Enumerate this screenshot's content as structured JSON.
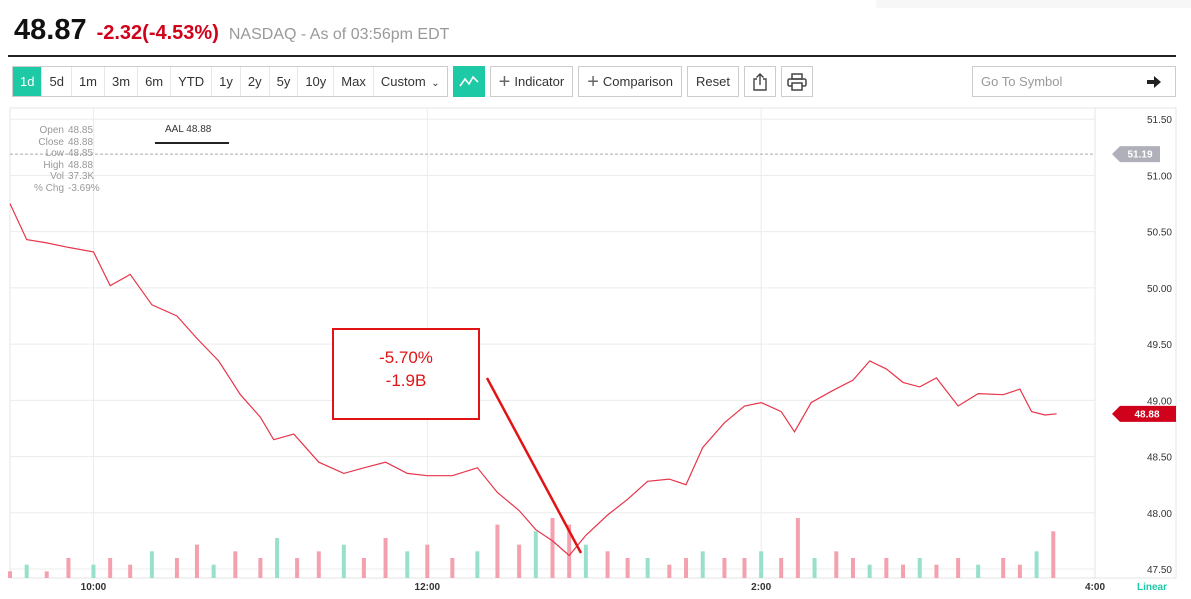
{
  "header": {
    "price": "48.87",
    "change": "-2.32",
    "change_pct": "(-4.53%)",
    "exchange_time": "NASDAQ - As of 03:56pm EDT"
  },
  "toolbar": {
    "ranges": [
      "1d",
      "5d",
      "1m",
      "3m",
      "6m",
      "YTD",
      "1y",
      "2y",
      "5y",
      "10y",
      "Max"
    ],
    "active_range": "1d",
    "custom_label": "Custom",
    "indicator_label": "Indicator",
    "comparison_label": "Comparison",
    "reset_label": "Reset"
  },
  "symbol_search": {
    "placeholder": "Go To Symbol"
  },
  "ohlc": {
    "open_label": "Open",
    "open": "48.85",
    "close_label": "Close",
    "close": "48.88",
    "low_label": "Low",
    "low": "48.85",
    "high_label": "High",
    "high": "48.88",
    "vol_label": "Vol",
    "vol": "37.3K",
    "chg_label": "% Chg",
    "chg": "-3.69%"
  },
  "legend": {
    "label": "AAL 48.88"
  },
  "annotation": {
    "line1": "-5.70%",
    "line2": "-1.9B"
  },
  "price_tags": {
    "previous_close": "51.19",
    "last": "48.88"
  },
  "scale_label": "Linear",
  "colors": {
    "accent": "#1ec9a5",
    "line": "#e8354a",
    "down": "#d0021b",
    "annotation": "#e01414",
    "vol_down": "#f5a0ae",
    "vol_up": "#98e0cc",
    "prev_close_tag": "#b0b0bb"
  },
  "chart_data": {
    "type": "line",
    "y_ticks": [
      "51.50",
      "51.00",
      "50.50",
      "50.00",
      "49.50",
      "49.00",
      "48.50",
      "48.00",
      "47.50"
    ],
    "x_ticks": [
      {
        "t": 10.0,
        "label": "10:00"
      },
      {
        "t": 12.0,
        "label": "12:00"
      },
      {
        "t": 14.0,
        "label": "2:00"
      },
      {
        "t": 16.0,
        "label": "4:00"
      }
    ],
    "ylim": [
      47.42,
      51.6
    ],
    "xlim": [
      9.5,
      16.0
    ],
    "previous_close": 51.19,
    "series": [
      {
        "points": [
          [
            9.5,
            50.75
          ],
          [
            9.6,
            50.43
          ],
          [
            9.72,
            50.4
          ],
          [
            9.85,
            50.36
          ],
          [
            10.0,
            50.32
          ],
          [
            10.1,
            50.02
          ],
          [
            10.22,
            50.12
          ],
          [
            10.35,
            49.85
          ],
          [
            10.5,
            49.75
          ],
          [
            10.62,
            49.55
          ],
          [
            10.75,
            49.35
          ],
          [
            10.88,
            49.05
          ],
          [
            11.0,
            48.85
          ],
          [
            11.08,
            48.65
          ],
          [
            11.2,
            48.7
          ],
          [
            11.35,
            48.45
          ],
          [
            11.5,
            48.35
          ],
          [
            11.62,
            48.4
          ],
          [
            11.75,
            48.45
          ],
          [
            11.88,
            48.35
          ],
          [
            12.0,
            48.33
          ],
          [
            12.15,
            48.33
          ],
          [
            12.3,
            48.4
          ],
          [
            12.42,
            48.18
          ],
          [
            12.55,
            48.02
          ],
          [
            12.65,
            47.85
          ],
          [
            12.75,
            47.75
          ],
          [
            12.85,
            47.62
          ],
          [
            12.95,
            47.8
          ],
          [
            13.08,
            47.98
          ],
          [
            13.2,
            48.12
          ],
          [
            13.32,
            48.28
          ],
          [
            13.45,
            48.3
          ],
          [
            13.55,
            48.25
          ],
          [
            13.65,
            48.58
          ],
          [
            13.78,
            48.8
          ],
          [
            13.9,
            48.95
          ],
          [
            14.0,
            48.98
          ],
          [
            14.12,
            48.9
          ],
          [
            14.2,
            48.72
          ],
          [
            14.3,
            48.98
          ],
          [
            14.42,
            49.08
          ],
          [
            14.55,
            49.18
          ],
          [
            14.65,
            49.35
          ],
          [
            14.75,
            49.28
          ],
          [
            14.85,
            49.16
          ],
          [
            14.95,
            49.12
          ],
          [
            15.05,
            49.2
          ],
          [
            15.18,
            48.95
          ],
          [
            15.3,
            49.06
          ],
          [
            15.45,
            49.05
          ],
          [
            15.55,
            49.1
          ],
          [
            15.62,
            48.9
          ],
          [
            15.7,
            48.87
          ],
          [
            15.77,
            48.88
          ]
        ]
      }
    ],
    "volume": [
      [
        9.5,
        1
      ],
      [
        9.6,
        2
      ],
      [
        9.72,
        1
      ],
      [
        9.85,
        3
      ],
      [
        10.0,
        2
      ],
      [
        10.1,
        3
      ],
      [
        10.22,
        2
      ],
      [
        10.35,
        4
      ],
      [
        10.5,
        3
      ],
      [
        10.62,
        5
      ],
      [
        10.72,
        2
      ],
      [
        10.85,
        4
      ],
      [
        11.0,
        3
      ],
      [
        11.1,
        6
      ],
      [
        11.22,
        3
      ],
      [
        11.35,
        4
      ],
      [
        11.5,
        5
      ],
      [
        11.62,
        3
      ],
      [
        11.75,
        6
      ],
      [
        11.88,
        4
      ],
      [
        12.0,
        5
      ],
      [
        12.15,
        3
      ],
      [
        12.3,
        4
      ],
      [
        12.42,
        8
      ],
      [
        12.55,
        5
      ],
      [
        12.65,
        7
      ],
      [
        12.75,
        9
      ],
      [
        12.85,
        8
      ],
      [
        12.95,
        5
      ],
      [
        13.08,
        4
      ],
      [
        13.2,
        3
      ],
      [
        13.32,
        3
      ],
      [
        13.45,
        2
      ],
      [
        13.55,
        3
      ],
      [
        13.65,
        4
      ],
      [
        13.78,
        3
      ],
      [
        13.9,
        3
      ],
      [
        14.0,
        4
      ],
      [
        14.12,
        3
      ],
      [
        14.22,
        9
      ],
      [
        14.32,
        3
      ],
      [
        14.45,
        4
      ],
      [
        14.55,
        3
      ],
      [
        14.65,
        2
      ],
      [
        14.75,
        3
      ],
      [
        14.85,
        2
      ],
      [
        14.95,
        3
      ],
      [
        15.05,
        2
      ],
      [
        15.18,
        3
      ],
      [
        15.3,
        2
      ],
      [
        15.45,
        3
      ],
      [
        15.55,
        2
      ],
      [
        15.65,
        4
      ],
      [
        15.75,
        7
      ]
    ]
  }
}
